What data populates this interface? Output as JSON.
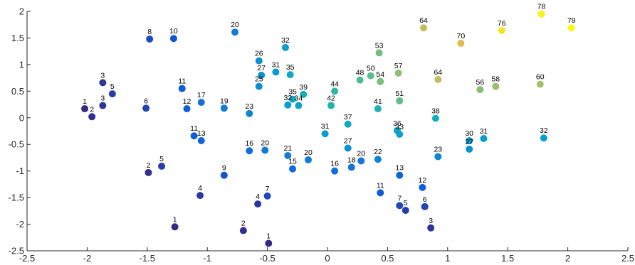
{
  "chart_data": {
    "type": "scatter",
    "title": "",
    "xlabel": "",
    "ylabel": "",
    "xlim": [
      -2.5,
      2.5
    ],
    "ylim": [
      -2.5,
      2
    ],
    "xticks": [
      -2.5,
      -2,
      -1.5,
      -1,
      -0.5,
      0,
      0.5,
      1,
      1.5,
      2,
      2.5
    ],
    "yticks": [
      -2.5,
      -2,
      -1.5,
      -1,
      -0.5,
      0,
      0.5,
      1,
      1.5,
      2
    ],
    "xtick_labels": [
      "-2.5",
      "-2",
      "-1.5",
      "-1",
      "-0.5",
      "0",
      "0.5",
      "1",
      "1.5",
      "2",
      "2.5"
    ],
    "ytick_labels": [
      "-2.5",
      "-2",
      "-1.5",
      "-1",
      "-0.5",
      "0",
      "0.5",
      "1",
      "1.5",
      "2"
    ],
    "grid": false,
    "legend": "none",
    "colormap": "parula",
    "color_range": [
      1,
      79
    ],
    "points": [
      {
        "x": -2.02,
        "y": 0.17,
        "label": "1"
      },
      {
        "x": -1.96,
        "y": 0.02,
        "label": "2"
      },
      {
        "x": -1.87,
        "y": 0.66,
        "label": "3"
      },
      {
        "x": -1.87,
        "y": 0.23,
        "label": "3"
      },
      {
        "x": -1.79,
        "y": 0.45,
        "label": "5"
      },
      {
        "x": -1.51,
        "y": 0.18,
        "label": "6"
      },
      {
        "x": -1.48,
        "y": 1.48,
        "label": "8"
      },
      {
        "x": -1.28,
        "y": 1.49,
        "label": "10"
      },
      {
        "x": -1.21,
        "y": 0.55,
        "label": "11"
      },
      {
        "x": -1.17,
        "y": 0.17,
        "label": "12"
      },
      {
        "x": -1.05,
        "y": 0.29,
        "label": "17"
      },
      {
        "x": -1.11,
        "y": -0.34,
        "label": "11"
      },
      {
        "x": -1.05,
        "y": -0.43,
        "label": "13"
      },
      {
        "x": -0.86,
        "y": 0.18,
        "label": "19"
      },
      {
        "x": -0.77,
        "y": 1.61,
        "label": "20"
      },
      {
        "x": -0.65,
        "y": 0.08,
        "label": "23"
      },
      {
        "x": -0.57,
        "y": 1.07,
        "label": "26"
      },
      {
        "x": -0.57,
        "y": 0.59,
        "label": "25"
      },
      {
        "x": -0.55,
        "y": 0.8,
        "label": "27"
      },
      {
        "x": -0.43,
        "y": 0.86,
        "label": "31"
      },
      {
        "x": -0.35,
        "y": 1.32,
        "label": "32"
      },
      {
        "x": -0.31,
        "y": 0.81,
        "label": "35"
      },
      {
        "x": -0.33,
        "y": 0.24,
        "label": "32"
      },
      {
        "x": -0.29,
        "y": 0.35,
        "label": "35"
      },
      {
        "x": -0.24,
        "y": 0.23,
        "label": "34"
      },
      {
        "x": -0.2,
        "y": 0.44,
        "label": "39"
      },
      {
        "x": -0.65,
        "y": -0.62,
        "label": "16"
      },
      {
        "x": -0.52,
        "y": -0.61,
        "label": "20"
      },
      {
        "x": -0.33,
        "y": -0.71,
        "label": "21"
      },
      {
        "x": -0.29,
        "y": -0.96,
        "label": "15"
      },
      {
        "x": -0.16,
        "y": -0.79,
        "label": "20"
      },
      {
        "x": -0.02,
        "y": -0.3,
        "label": "31"
      },
      {
        "x": 0.03,
        "y": 0.23,
        "label": "42"
      },
      {
        "x": 0.06,
        "y": 0.5,
        "label": "44"
      },
      {
        "x": 0.06,
        "y": -1.0,
        "label": "16"
      },
      {
        "x": 0.17,
        "y": -0.12,
        "label": "37"
      },
      {
        "x": 0.17,
        "y": -0.57,
        "label": "27"
      },
      {
        "x": 0.2,
        "y": -0.93,
        "label": "18"
      },
      {
        "x": 0.27,
        "y": 0.71,
        "label": "48"
      },
      {
        "x": 0.28,
        "y": -0.81,
        "label": "20"
      },
      {
        "x": 0.36,
        "y": 0.79,
        "label": "50"
      },
      {
        "x": 0.42,
        "y": 0.17,
        "label": "41"
      },
      {
        "x": 0.42,
        "y": -0.78,
        "label": "22"
      },
      {
        "x": 0.43,
        "y": 1.22,
        "label": "53"
      },
      {
        "x": 0.44,
        "y": 0.68,
        "label": "54"
      },
      {
        "x": 0.44,
        "y": -1.41,
        "label": "11"
      },
      {
        "x": 0.6,
        "y": -1.65,
        "label": "7"
      },
      {
        "x": 0.65,
        "y": -1.74,
        "label": "5"
      },
      {
        "x": 0.59,
        "y": 0.84,
        "label": "57"
      },
      {
        "x": 0.6,
        "y": 0.32,
        "label": "51"
      },
      {
        "x": 0.58,
        "y": -0.24,
        "label": "36"
      },
      {
        "x": 0.6,
        "y": -0.31,
        "label": "33"
      },
      {
        "x": 0.6,
        "y": -1.08,
        "label": "13"
      },
      {
        "x": 0.8,
        "y": 1.69,
        "label": "64"
      },
      {
        "x": 0.79,
        "y": -1.31,
        "label": "12"
      },
      {
        "x": 0.81,
        "y": -1.67,
        "label": "6"
      },
      {
        "x": 0.86,
        "y": -2.07,
        "label": "3"
      },
      {
        "x": 0.9,
        "y": -0.01,
        "label": "38"
      },
      {
        "x": 0.92,
        "y": 0.72,
        "label": "64"
      },
      {
        "x": 0.92,
        "y": -0.73,
        "label": "23"
      },
      {
        "x": 1.11,
        "y": 1.4,
        "label": "70"
      },
      {
        "x": 1.18,
        "y": -0.43,
        "label": "30"
      },
      {
        "x": 1.18,
        "y": -0.59,
        "label": "27"
      },
      {
        "x": 1.27,
        "y": 0.53,
        "label": "56"
      },
      {
        "x": 1.3,
        "y": -0.39,
        "label": "31"
      },
      {
        "x": 1.4,
        "y": 0.59,
        "label": "58"
      },
      {
        "x": 1.45,
        "y": 1.64,
        "label": "76"
      },
      {
        "x": 1.78,
        "y": 1.95,
        "label": "78"
      },
      {
        "x": 1.77,
        "y": 0.63,
        "label": "60"
      },
      {
        "x": 1.8,
        "y": -0.38,
        "label": "32"
      },
      {
        "x": 2.03,
        "y": 1.69,
        "label": "79"
      },
      {
        "x": -1.49,
        "y": -1.03,
        "label": "2"
      },
      {
        "x": -1.38,
        "y": -0.91,
        "label": "5"
      },
      {
        "x": -1.06,
        "y": -1.46,
        "label": "4"
      },
      {
        "x": -0.86,
        "y": -1.08,
        "label": "9"
      },
      {
        "x": -1.27,
        "y": -2.05,
        "label": "1"
      },
      {
        "x": -0.7,
        "y": -2.12,
        "label": "2"
      },
      {
        "x": -0.58,
        "y": -1.62,
        "label": "4"
      },
      {
        "x": -0.5,
        "y": -1.47,
        "label": "7"
      },
      {
        "x": -0.49,
        "y": -2.36,
        "label": "1"
      }
    ]
  }
}
